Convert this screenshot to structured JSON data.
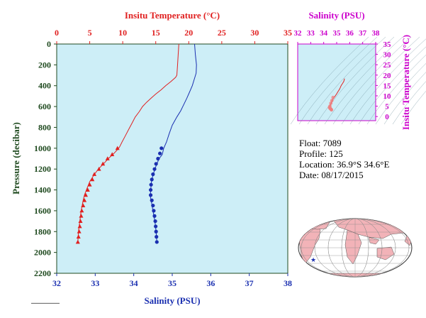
{
  "info": {
    "float_label": "Float:",
    "float_value": "7089",
    "profile_label": "Profile:",
    "profile_value": "125",
    "location_label": "Location:",
    "location_value": "36.9°S  34.6°E",
    "date_label": "Date:",
    "date_value": "08/17/2015"
  },
  "colors": {
    "temperature": "#e02020",
    "salinity": "#1a2fb0",
    "plot_bg": "#cdeef7",
    "axis_green": "#1f4a1f",
    "magenta": "#cc00cc",
    "land": "#f2b3b8"
  },
  "chart_data": [
    {
      "type": "line",
      "title": "",
      "y_axis": {
        "label": "Pressure (decibar)",
        "range": [
          0,
          2200
        ],
        "inverted": true,
        "ticks": [
          0,
          200,
          400,
          600,
          800,
          1000,
          1200,
          1400,
          1600,
          1800,
          2000,
          2200
        ]
      },
      "x_top": {
        "label": "Insitu Temperature (°C)",
        "range": [
          0,
          35
        ],
        "ticks": [
          0,
          5,
          10,
          15,
          20,
          25,
          30,
          35
        ]
      },
      "x_bottom": {
        "label": "Salinity (PSU)",
        "range": [
          32,
          38
        ],
        "ticks": [
          32,
          33,
          34,
          35,
          36,
          37,
          38
        ]
      },
      "series": [
        {
          "variable": "temperature",
          "axis": "top",
          "line": [
            [
              18.5,
              0
            ],
            [
              18.4,
              100
            ],
            [
              18.3,
              200
            ],
            [
              18.2,
              300
            ],
            [
              18.0,
              320
            ],
            [
              17.3,
              360
            ],
            [
              16.5,
              400
            ],
            [
              15.8,
              440
            ],
            [
              15.0,
              480
            ],
            [
              14.3,
              520
            ],
            [
              13.6,
              560
            ],
            [
              13.0,
              600
            ],
            [
              12.5,
              650
            ],
            [
              11.9,
              700
            ],
            [
              11.4,
              760
            ],
            [
              10.9,
              820
            ],
            [
              10.4,
              880
            ],
            [
              9.9,
              940
            ],
            [
              9.5,
              990
            ],
            [
              9.1,
              1020
            ],
            [
              8.5,
              1060
            ],
            [
              7.8,
              1100
            ],
            [
              7.1,
              1150
            ],
            [
              6.3,
              1200
            ],
            [
              5.6,
              1260
            ],
            [
              5.0,
              1320
            ],
            [
              4.5,
              1400
            ],
            [
              4.2,
              1450
            ],
            [
              4.0,
              1500
            ],
            [
              3.7,
              1600
            ],
            [
              3.5,
              1700
            ],
            [
              3.3,
              1800
            ],
            [
              3.2,
              1900
            ]
          ],
          "points": [
            [
              9.2,
              1000
            ],
            [
              8.4,
              1060
            ],
            [
              7.7,
              1100
            ],
            [
              7.0,
              1150
            ],
            [
              6.4,
              1200
            ],
            [
              5.7,
              1250
            ],
            [
              5.4,
              1300
            ],
            [
              5.0,
              1350
            ],
            [
              4.7,
              1400
            ],
            [
              4.4,
              1450
            ],
            [
              4.2,
              1500
            ],
            [
              4.0,
              1550
            ],
            [
              3.8,
              1600
            ],
            [
              3.7,
              1650
            ],
            [
              3.6,
              1700
            ],
            [
              3.5,
              1750
            ],
            [
              3.4,
              1800
            ],
            [
              3.3,
              1850
            ],
            [
              3.2,
              1900
            ]
          ]
        },
        {
          "variable": "salinity",
          "axis": "bottom",
          "line": [
            [
              35.58,
              0
            ],
            [
              35.6,
              100
            ],
            [
              35.63,
              200
            ],
            [
              35.62,
              280
            ],
            [
              35.57,
              340
            ],
            [
              35.52,
              400
            ],
            [
              35.45,
              460
            ],
            [
              35.38,
              520
            ],
            [
              35.3,
              580
            ],
            [
              35.22,
              640
            ],
            [
              35.12,
              700
            ],
            [
              35.0,
              780
            ],
            [
              34.92,
              860
            ],
            [
              34.85,
              940
            ],
            [
              34.78,
              1000
            ],
            [
              34.74,
              1060
            ],
            [
              34.66,
              1100
            ],
            [
              34.6,
              1150
            ],
            [
              34.55,
              1200
            ],
            [
              34.5,
              1260
            ],
            [
              34.46,
              1320
            ],
            [
              34.44,
              1400
            ],
            [
              34.43,
              1460
            ],
            [
              34.46,
              1520
            ],
            [
              34.5,
              1600
            ],
            [
              34.55,
              1700
            ],
            [
              34.58,
              1800
            ],
            [
              34.6,
              1900
            ]
          ],
          "points": [
            [
              34.72,
              1000
            ],
            [
              34.68,
              1050
            ],
            [
              34.63,
              1100
            ],
            [
              34.58,
              1150
            ],
            [
              34.54,
              1200
            ],
            [
              34.5,
              1250
            ],
            [
              34.47,
              1300
            ],
            [
              34.45,
              1350
            ],
            [
              34.44,
              1400
            ],
            [
              34.44,
              1450
            ],
            [
              34.47,
              1500
            ],
            [
              34.5,
              1550
            ],
            [
              34.52,
              1600
            ],
            [
              34.54,
              1650
            ],
            [
              34.56,
              1700
            ],
            [
              34.57,
              1750
            ],
            [
              34.58,
              1800
            ],
            [
              34.59,
              1850
            ],
            [
              34.6,
              1900
            ]
          ]
        }
      ]
    },
    {
      "type": "scatter",
      "title": "",
      "x_axis": {
        "label": "Salinity (PSU)",
        "range": [
          32,
          38
        ],
        "ticks": [
          32,
          33,
          34,
          35,
          36,
          37,
          38
        ]
      },
      "y_axis": {
        "label": "Insitu Temperature (°C)",
        "range": [
          -2,
          35
        ],
        "ticks": [
          0,
          5,
          10,
          15,
          20,
          25,
          30,
          35
        ]
      },
      "series": [
        {
          "line": [
            [
              35.6,
              18.3
            ],
            [
              35.55,
              17
            ],
            [
              35.45,
              16
            ],
            [
              35.35,
              15
            ],
            [
              35.28,
              14
            ],
            [
              35.2,
              13
            ],
            [
              35.1,
              12
            ],
            [
              35.0,
              11
            ],
            [
              34.92,
              10.2
            ],
            [
              34.84,
              9.5
            ],
            [
              34.76,
              9
            ],
            [
              34.7,
              8.2
            ],
            [
              34.64,
              7.4
            ],
            [
              34.58,
              6.5
            ],
            [
              34.52,
              5.6
            ],
            [
              34.48,
              4.8
            ],
            [
              34.44,
              4.2
            ],
            [
              34.46,
              4.0
            ],
            [
              34.52,
              3.7
            ],
            [
              34.56,
              3.5
            ],
            [
              34.6,
              3.2
            ]
          ],
          "points": [
            [
              34.72,
              9.2
            ],
            [
              34.63,
              7.7
            ],
            [
              34.55,
              6.4
            ],
            [
              34.48,
              5.0
            ],
            [
              34.44,
              4.4
            ],
            [
              34.48,
              4.0
            ],
            [
              34.52,
              3.8
            ],
            [
              34.55,
              3.6
            ],
            [
              34.58,
              3.4
            ],
            [
              34.6,
              3.2
            ]
          ]
        }
      ]
    }
  ],
  "map": {
    "marker": {
      "lat": -36.9,
      "lon": 34.6
    }
  }
}
